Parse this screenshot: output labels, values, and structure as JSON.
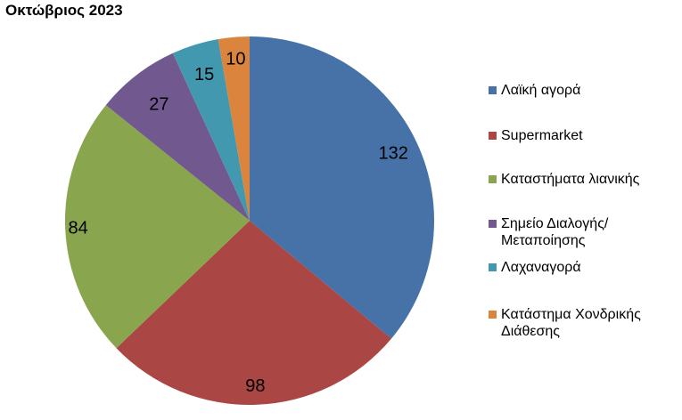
{
  "chart_data": {
    "type": "pie",
    "title": "Οκτώβριος 2023",
    "legend_position": "right",
    "slices": [
      {
        "label": "Λαϊκή αγορά",
        "value": 132,
        "color": "#4672A8"
      },
      {
        "label": "Supermarket",
        "value": 98,
        "color": "#AA4644"
      },
      {
        "label": "Καταστήματα λιανικής",
        "value": 84,
        "color": "#89A54E"
      },
      {
        "label": "Σημείο Διαλογής/Μεταποίησης",
        "value": 27,
        "color": "#71588F"
      },
      {
        "label": "Λαχαναγορά",
        "value": 15,
        "color": "#4298AF"
      },
      {
        "label": "Κατάστημα Χονδρικής Διάθεσης",
        "value": 10,
        "color": "#DB843D"
      }
    ]
  }
}
